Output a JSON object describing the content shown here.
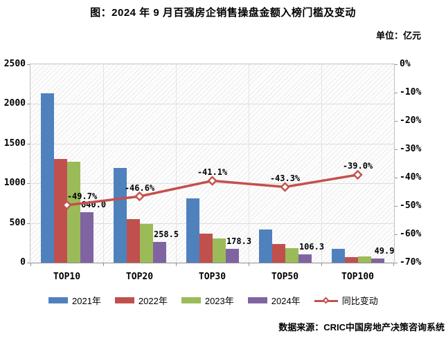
{
  "title": "图：2024 年 9 月百强房企销售操盘金额入榜门槛及变动",
  "unit_label": "单位：亿元",
  "source": "数据来源：CRIC中国房地产决策咨询系统",
  "colors": {
    "y2021": "#4F81BD",
    "y2022": "#C0504D",
    "y2023": "#9BBB59",
    "y2024": "#8064A2",
    "line": "#C4504C",
    "gridline": "#dcdcdc",
    "text": "#000000"
  },
  "chart_data": {
    "type": "bar+line",
    "categories": [
      "TOP10",
      "TOP20",
      "TOP30",
      "TOP50",
      "TOP100"
    ],
    "series": [
      {
        "name": "2021年",
        "color_key": "y2021",
        "values": [
          2134,
          1191,
          810,
          421,
          175
        ]
      },
      {
        "name": "2022年",
        "color_key": "y2022",
        "values": [
          1306,
          551,
          363,
          234,
          72
        ]
      },
      {
        "name": "2023年",
        "color_key": "y2023",
        "values": [
          1272.6,
          484.1,
          302.7,
          187.5,
          81.8
        ]
      },
      {
        "name": "2024年",
        "color_key": "y2024",
        "values": [
          640.0,
          258.5,
          178.3,
          106.3,
          49.9
        ],
        "labels": [
          "640.0",
          "258.5",
          "178.3",
          "106.3",
          "49.9"
        ]
      }
    ],
    "line_series": {
      "name": "同比变动",
      "values": [
        -49.7,
        -46.6,
        -41.1,
        -43.3,
        -39.0
      ],
      "labels": [
        "-49.7%",
        "-46.6%",
        "-41.1%",
        "-43.3%",
        "-39.0%"
      ]
    },
    "left_axis": {
      "min": 0,
      "max": 2500,
      "ticks": [
        "0",
        "500",
        "1000",
        "1500",
        "2000",
        "2500"
      ]
    },
    "right_axis": {
      "min": -70,
      "max": 0,
      "ticks": [
        "0%",
        "-10%",
        "-20%",
        "-30%",
        "-40%",
        "-50%",
        "-60%",
        "-70%"
      ]
    },
    "grid": true,
    "legend_position": "bottom"
  }
}
